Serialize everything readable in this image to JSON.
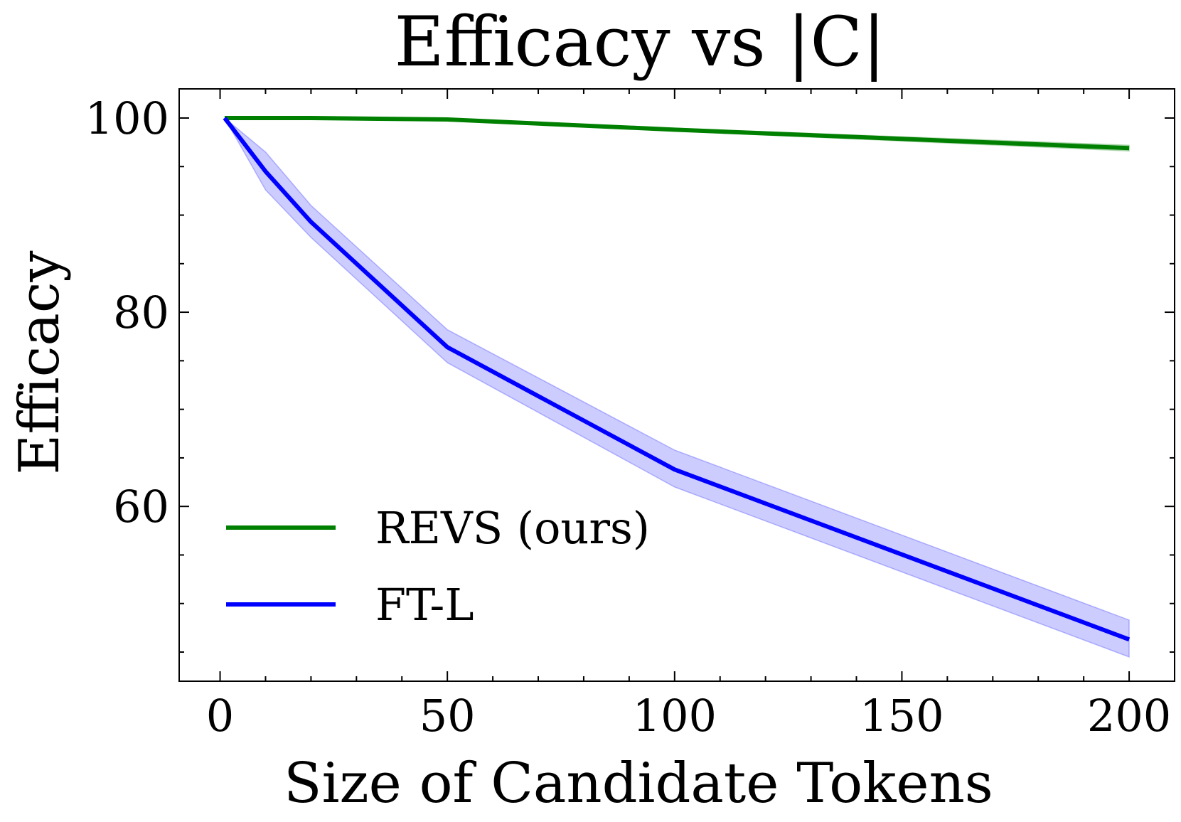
{
  "chart_data": {
    "type": "line",
    "title": "Efficacy vs |C|",
    "xlabel": "Size of Candidate Tokens",
    "ylabel": "Efficacy",
    "xlim": [
      -9,
      210
    ],
    "ylim": [
      42,
      103
    ],
    "xticks": [
      0,
      50,
      100,
      150,
      200
    ],
    "yticks": [
      60,
      80,
      100
    ],
    "x_minor_step": 10,
    "y_minor_step": 5,
    "legend_position": "lower-left",
    "series": [
      {
        "name": "REVS (ours)",
        "color": "#008000",
        "x": [
          1,
          10,
          20,
          50,
          100,
          200
        ],
        "y": [
          100,
          100,
          100,
          99.85,
          98.8,
          96.9
        ],
        "y_lower": [
          100,
          100,
          100,
          99.8,
          98.65,
          96.6
        ],
        "y_upper": [
          100,
          100,
          100,
          99.9,
          98.95,
          97.2
        ]
      },
      {
        "name": "FT-L",
        "color": "#0000ff",
        "x": [
          1,
          10,
          20,
          50,
          100,
          200
        ],
        "y": [
          100,
          94.5,
          89.3,
          76.4,
          63.8,
          46.3
        ],
        "y_lower": [
          100,
          92.6,
          87.7,
          74.8,
          62.0,
          44.5
        ],
        "y_upper": [
          100,
          96.5,
          91.0,
          78.2,
          65.8,
          48.3
        ]
      }
    ]
  }
}
